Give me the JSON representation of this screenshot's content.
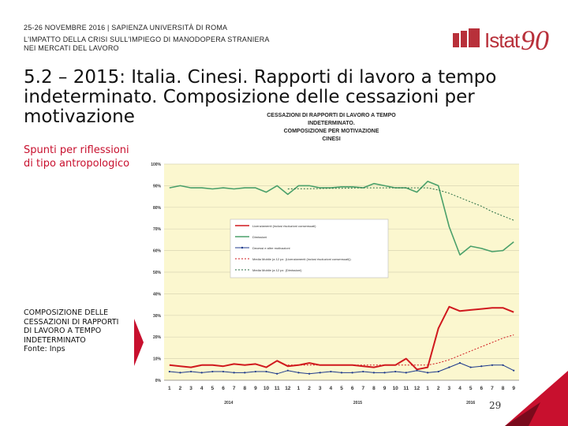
{
  "header": {
    "line1": "25-26 NOVEMBRE 2016 | SAPIENZA UNIVERSITÀ DI ROMA",
    "line2": "L'IMPATTO DELLA CRISI SULL'IMPIEGO DI MANODOPERA STRANIERA",
    "line3": "NEI MERCATI DEL LAVORO"
  },
  "logo": {
    "text": "Istat",
    "number": "90",
    "brand_color": "#b8303a"
  },
  "title": "5.2 – 2015: Italia. Cinesi. Rapporti di lavoro a tempo indeterminato. Composizione delle cessazioni per motivazione",
  "side_text": "Spunti per riflessioni di tipo antropologico",
  "note": {
    "line1": "COMPOSIZIONE DELLE",
    "line2": "CESSAZIONI DI RAPPORTI",
    "line3": "DI LAVORO A TEMPO",
    "line4": "INDETERMINATO",
    "source": "Fonte: Inps"
  },
  "page_number": "29",
  "chart_data": {
    "type": "line",
    "title_lines": [
      "CESSAZIONI DI RAPPORTI DI LAVORO A TEMPO INDETERMINATO.",
      "COMPOSIZIONE PER MOTIVAZIONE",
      "CINESI"
    ],
    "y_ticks": [
      "0%",
      "10%",
      "20%",
      "30%",
      "40%",
      "50%",
      "60%",
      "70%",
      "80%",
      "90%",
      "100%"
    ],
    "ylim": [
      0,
      100
    ],
    "x_labels": [
      "1",
      "2",
      "3",
      "4",
      "5",
      "6",
      "7",
      "8",
      "9",
      "10",
      "11",
      "12",
      "1",
      "2",
      "3",
      "4",
      "5",
      "6",
      "7",
      "8",
      "9",
      "10",
      "11",
      "12",
      "1",
      "2",
      "3",
      "4",
      "5",
      "6",
      "7",
      "8",
      "9"
    ],
    "year_labels": [
      {
        "label": "2014",
        "index": 5.5
      },
      {
        "label": "2015",
        "index": 17.5
      },
      {
        "label": "2016",
        "index": 28
      }
    ],
    "grid": true,
    "legend_position": "center-left",
    "series": [
      {
        "name": "Licenziamenti (inclusi risoluzioni consensuali)",
        "color": "#d0191e",
        "style": "solid",
        "width": 2,
        "values": [
          7,
          6.5,
          6,
          7,
          7,
          6.5,
          7.5,
          7,
          7.5,
          6,
          9,
          6.5,
          7,
          8,
          7,
          7,
          7,
          7,
          6.5,
          6,
          7,
          7,
          10,
          5,
          6,
          24,
          34,
          32,
          32.5,
          33,
          33.5,
          33.5,
          31.5
        ]
      },
      {
        "name": "Dimissioni",
        "color": "#4aa06a",
        "style": "solid",
        "width": 1.6,
        "values": [
          89,
          90,
          89,
          89,
          88.5,
          89,
          88.5,
          89,
          89,
          87,
          90,
          86,
          90,
          90,
          89,
          89,
          89.5,
          89.5,
          89,
          91,
          90,
          89,
          89,
          87,
          92,
          90,
          71,
          58,
          62,
          61,
          59.5,
          60,
          64
        ]
      },
      {
        "name": "Decessi e altre motivazioni",
        "color": "#1f3b8c",
        "style": "marker",
        "width": 1,
        "values": [
          4,
          3.5,
          4,
          3.5,
          4,
          4,
          3.5,
          3.5,
          4,
          4,
          3,
          4.5,
          3.5,
          3,
          3.5,
          4,
          3.5,
          3.5,
          4,
          3.5,
          3.5,
          4,
          3.5,
          4.5,
          3.5,
          4,
          6,
          8,
          6,
          6.5,
          7,
          7,
          4.5
        ]
      },
      {
        "name": "Media Mobile (a 12 pz. (Licenziamenti (inclusi risoluzioni consensuali))",
        "color": "#d0191e",
        "style": "dashed",
        "width": 1,
        "values": [
          null,
          null,
          null,
          null,
          null,
          null,
          null,
          null,
          null,
          null,
          null,
          7,
          7,
          7,
          7,
          7,
          7,
          7,
          7,
          7,
          7,
          7,
          7,
          7,
          7,
          8,
          9.5,
          11.5,
          13.5,
          15.5,
          17.5,
          19.5,
          21
        ]
      },
      {
        "name": "Media Mobile (a 12 pz. (Dimissioni)",
        "color": "#2a6e45",
        "style": "dashed",
        "width": 1,
        "values": [
          null,
          null,
          null,
          null,
          null,
          null,
          null,
          null,
          null,
          null,
          null,
          88.5,
          88.6,
          88.6,
          88.7,
          88.8,
          88.8,
          88.9,
          89,
          89,
          89,
          89,
          89,
          89,
          89,
          88,
          86.5,
          84.5,
          82.5,
          80.5,
          78,
          76,
          74
        ]
      }
    ]
  }
}
